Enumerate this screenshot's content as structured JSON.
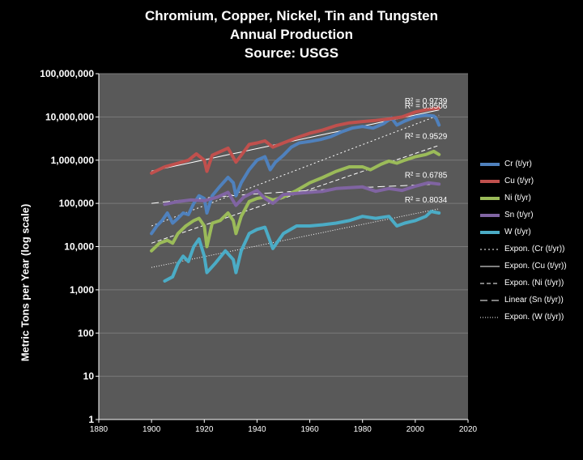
{
  "title_lines": [
    "Chromium, Copper, Nickel, Tin and Tungsten",
    "Annual Production",
    "Source: USGS"
  ],
  "colors": {
    "background": "#000000",
    "plot_area": "#595959",
    "gridline": "#7a7a7a",
    "text": "#ffffff",
    "Cr": "#4f81bd",
    "Cu": "#c0504d",
    "Ni": "#9bbb59",
    "Sn": "#8064a2",
    "W": "#4bacc6"
  },
  "chart_data": {
    "type": "line",
    "title": "Chromium, Copper, Nickel, Tin and Tungsten Annual Production Source: USGS",
    "xlabel": "",
    "ylabel": "Metric Tons per Year (log scale)",
    "xlim": [
      1880,
      2020
    ],
    "ylim": [
      1,
      100000000
    ],
    "y_scale": "log",
    "grid": true,
    "legend_position": "right",
    "x_ticks": [
      "1880",
      "1900",
      "1920",
      "1940",
      "1960",
      "1980",
      "2000",
      "2020"
    ],
    "y_ticks": [
      "1",
      "10",
      "100",
      "1,000",
      "10,000",
      "100,000",
      "1,000,000",
      "10,000,000",
      "100,000,000"
    ],
    "series": [
      {
        "name": "Cr (t/yr)",
        "color_key": "Cr",
        "points": [
          [
            1900,
            20000
          ],
          [
            1902,
            30000
          ],
          [
            1904,
            40000
          ],
          [
            1906,
            60000
          ],
          [
            1908,
            35000
          ],
          [
            1910,
            45000
          ],
          [
            1912,
            60000
          ],
          [
            1914,
            55000
          ],
          [
            1916,
            100000
          ],
          [
            1918,
            150000
          ],
          [
            1920,
            130000
          ],
          [
            1921,
            60000
          ],
          [
            1923,
            150000
          ],
          [
            1926,
            250000
          ],
          [
            1929,
            400000
          ],
          [
            1931,
            300000
          ],
          [
            1932,
            150000
          ],
          [
            1934,
            300000
          ],
          [
            1937,
            600000
          ],
          [
            1940,
            1000000
          ],
          [
            1943,
            1200000
          ],
          [
            1945,
            600000
          ],
          [
            1947,
            900000
          ],
          [
            1950,
            1300000
          ],
          [
            1953,
            2000000
          ],
          [
            1956,
            2500000
          ],
          [
            1960,
            2700000
          ],
          [
            1964,
            3000000
          ],
          [
            1968,
            3500000
          ],
          [
            1972,
            4500000
          ],
          [
            1976,
            5500000
          ],
          [
            1980,
            6000000
          ],
          [
            1984,
            5500000
          ],
          [
            1988,
            7000000
          ],
          [
            1991,
            9500000
          ],
          [
            1993,
            6500000
          ],
          [
            1996,
            8000000
          ],
          [
            2000,
            10000000
          ],
          [
            2004,
            11000000
          ],
          [
            2007,
            10500000
          ],
          [
            2008,
            9000000
          ],
          [
            2009,
            6500000
          ]
        ],
        "r_squared": "R² = 0.9506"
      },
      {
        "name": "Cu (t/yr)",
        "color_key": "Cu",
        "points": [
          [
            1900,
            500000
          ],
          [
            1905,
            700000
          ],
          [
            1910,
            850000
          ],
          [
            1914,
            1000000
          ],
          [
            1917,
            1400000
          ],
          [
            1920,
            1000000
          ],
          [
            1921,
            550000
          ],
          [
            1923,
            1300000
          ],
          [
            1929,
            1900000
          ],
          [
            1932,
            900000
          ],
          [
            1934,
            1300000
          ],
          [
            1937,
            2300000
          ],
          [
            1940,
            2500000
          ],
          [
            1943,
            2800000
          ],
          [
            1946,
            2000000
          ],
          [
            1950,
            2500000
          ],
          [
            1955,
            3300000
          ],
          [
            1960,
            4200000
          ],
          [
            1965,
            5000000
          ],
          [
            1970,
            6300000
          ],
          [
            1975,
            7300000
          ],
          [
            1980,
            7800000
          ],
          [
            1985,
            8300000
          ],
          [
            1990,
            9000000
          ],
          [
            1995,
            10000000
          ],
          [
            2000,
            13000000
          ],
          [
            2005,
            15000000
          ],
          [
            2009,
            16000000
          ]
        ],
        "r_squared": "R² = 0.9739"
      },
      {
        "name": "Ni (t/yr)",
        "color_key": "Ni",
        "points": [
          [
            1900,
            8000
          ],
          [
            1903,
            12000
          ],
          [
            1906,
            14000
          ],
          [
            1908,
            12000
          ],
          [
            1910,
            20000
          ],
          [
            1913,
            30000
          ],
          [
            1916,
            40000
          ],
          [
            1918,
            45000
          ],
          [
            1920,
            30000
          ],
          [
            1921,
            10000
          ],
          [
            1923,
            35000
          ],
          [
            1926,
            40000
          ],
          [
            1929,
            60000
          ],
          [
            1931,
            40000
          ],
          [
            1932,
            20000
          ],
          [
            1934,
            50000
          ],
          [
            1937,
            110000
          ],
          [
            1940,
            130000
          ],
          [
            1943,
            140000
          ],
          [
            1946,
            120000
          ],
          [
            1950,
            140000
          ],
          [
            1955,
            200000
          ],
          [
            1960,
            300000
          ],
          [
            1965,
            400000
          ],
          [
            1970,
            550000
          ],
          [
            1975,
            700000
          ],
          [
            1980,
            700000
          ],
          [
            1983,
            600000
          ],
          [
            1987,
            800000
          ],
          [
            1990,
            950000
          ],
          [
            1993,
            850000
          ],
          [
            1996,
            1000000
          ],
          [
            2000,
            1200000
          ],
          [
            2004,
            1350000
          ],
          [
            2007,
            1600000
          ],
          [
            2009,
            1350000
          ]
        ],
        "r_squared": "R² = 0.9529"
      },
      {
        "name": "Sn (t/yr)",
        "color_key": "Sn",
        "points": [
          [
            1905,
            95000
          ],
          [
            1910,
            110000
          ],
          [
            1915,
            120000
          ],
          [
            1920,
            115000
          ],
          [
            1925,
            140000
          ],
          [
            1929,
            180000
          ],
          [
            1932,
            90000
          ],
          [
            1935,
            140000
          ],
          [
            1940,
            200000
          ],
          [
            1943,
            130000
          ],
          [
            1946,
            100000
          ],
          [
            1950,
            160000
          ],
          [
            1955,
            170000
          ],
          [
            1960,
            180000
          ],
          [
            1965,
            190000
          ],
          [
            1970,
            220000
          ],
          [
            1975,
            230000
          ],
          [
            1980,
            240000
          ],
          [
            1985,
            190000
          ],
          [
            1990,
            220000
          ],
          [
            1995,
            200000
          ],
          [
            2000,
            250000
          ],
          [
            2005,
            300000
          ],
          [
            2009,
            280000
          ]
        ],
        "r_squared": "R² = 0.6785"
      },
      {
        "name": "W (t/yr)",
        "color_key": "W",
        "points": [
          [
            1905,
            1600
          ],
          [
            1908,
            2000
          ],
          [
            1910,
            4000
          ],
          [
            1912,
            6000
          ],
          [
            1914,
            4500
          ],
          [
            1916,
            10000
          ],
          [
            1918,
            15000
          ],
          [
            1920,
            6000
          ],
          [
            1921,
            2500
          ],
          [
            1924,
            4000
          ],
          [
            1928,
            8000
          ],
          [
            1931,
            5000
          ],
          [
            1932,
            2500
          ],
          [
            1934,
            8000
          ],
          [
            1937,
            20000
          ],
          [
            1940,
            25000
          ],
          [
            1943,
            28000
          ],
          [
            1946,
            9000
          ],
          [
            1950,
            20000
          ],
          [
            1955,
            30000
          ],
          [
            1960,
            30000
          ],
          [
            1965,
            32000
          ],
          [
            1970,
            35000
          ],
          [
            1975,
            40000
          ],
          [
            1980,
            50000
          ],
          [
            1985,
            45000
          ],
          [
            1990,
            50000
          ],
          [
            1993,
            30000
          ],
          [
            1996,
            35000
          ],
          [
            2000,
            40000
          ],
          [
            2004,
            50000
          ],
          [
            2006,
            65000
          ],
          [
            2009,
            60000
          ]
        ],
        "r_squared": "R² = 0.8034"
      }
    ],
    "trendlines": [
      {
        "name": "Expon. (Cr (t/yr))",
        "fit": "exponential",
        "x": [
          1900,
          2009
        ],
        "y": [
          30000,
          11000000
        ],
        "style": "dotted"
      },
      {
        "name": "Expon. (Cu (t/yr))",
        "fit": "exponential",
        "x": [
          1900,
          2009
        ],
        "y": [
          560000,
          14500000
        ],
        "style": "solid"
      },
      {
        "name": "Expon. (Ni (t/yr))",
        "fit": "exponential",
        "x": [
          1900,
          2009
        ],
        "y": [
          12000,
          2200000
        ],
        "style": "dashed"
      },
      {
        "name": "Linear (Sn (t/yr))",
        "fit": "linear",
        "x": [
          1900,
          2009
        ],
        "y": [
          100000,
          280000
        ],
        "style": "longdash"
      },
      {
        "name": "Expon. (W (t/yr))",
        "fit": "exponential",
        "x": [
          1900,
          2009
        ],
        "y": [
          3300,
          75000
        ],
        "style": "fine-dotted"
      }
    ]
  }
}
